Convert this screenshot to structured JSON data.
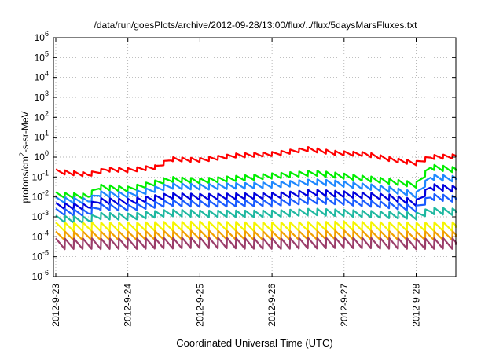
{
  "chart_data": {
    "type": "line",
    "title": "/data/run/goesPlots/archive/2012-09-28/13:00/flux/../flux/5daysMarsFluxes.txt",
    "xlabel": "Coordinated Universal Time (UTC)",
    "ylabel": {
      "base": "protons/cm",
      "sup": "2",
      "rest": "-s-sr-MeV"
    },
    "x_ticks": [
      "2012-9-23",
      "2012-9-24",
      "2012-9-25",
      "2012-9-26",
      "2012-9-27",
      "2012-9-28"
    ],
    "x_range_days": [
      0,
      5.58
    ],
    "y_scale": "log",
    "ylim": [
      1e-06,
      1000000.0
    ],
    "y_ticks": [
      {
        "value": -6,
        "base": "10",
        "exp": "-6"
      },
      {
        "value": -5,
        "base": "10",
        "exp": "-5"
      },
      {
        "value": -4,
        "base": "10",
        "exp": "-4"
      },
      {
        "value": -3,
        "base": "10",
        "exp": "-3"
      },
      {
        "value": -2,
        "base": "10",
        "exp": "-2"
      },
      {
        "value": -1,
        "base": "10",
        "exp": "-1"
      },
      {
        "value": 0,
        "base": "10",
        "exp": "0"
      },
      {
        "value": 1,
        "base": "10",
        "exp": "1"
      },
      {
        "value": 2,
        "base": "10",
        "exp": "2"
      },
      {
        "value": 3,
        "base": "10",
        "exp": "3"
      },
      {
        "value": 4,
        "base": "10",
        "exp": "4"
      },
      {
        "value": 5,
        "base": "10",
        "exp": "5"
      },
      {
        "value": 6,
        "base": "10",
        "exp": "6"
      }
    ],
    "grid": true,
    "legend": "none",
    "series": [
      {
        "color": "#ff0000",
        "anchors": [
          [
            0,
            -0.72
          ],
          [
            0.45,
            -0.88
          ],
          [
            0.7,
            -0.62
          ],
          [
            1.0,
            -0.66
          ],
          [
            1.4,
            -0.5
          ],
          [
            1.6,
            -0.1
          ],
          [
            2.0,
            -0.15
          ],
          [
            2.5,
            0.08
          ],
          [
            3.0,
            0.15
          ],
          [
            3.5,
            0.4
          ],
          [
            3.9,
            0.2
          ],
          [
            4.3,
            0.15
          ],
          [
            4.7,
            -0.15
          ],
          [
            5.0,
            -0.3
          ],
          [
            5.2,
            0.0
          ],
          [
            5.58,
            0.05
          ]
        ],
        "saw_amp": 0.22
      },
      {
        "color": "#00ee00",
        "anchors": [
          [
            0,
            -1.9
          ],
          [
            0.45,
            -1.97
          ],
          [
            0.6,
            -1.5
          ],
          [
            1.0,
            -1.62
          ],
          [
            1.6,
            -1.12
          ],
          [
            2.0,
            -1.2
          ],
          [
            3.0,
            -0.95
          ],
          [
            3.6,
            -0.8
          ],
          [
            3.9,
            -0.92
          ],
          [
            4.6,
            -1.2
          ],
          [
            5.0,
            -1.4
          ],
          [
            5.2,
            -0.5
          ],
          [
            5.58,
            -0.65
          ]
        ],
        "saw_amp": 0.28
      },
      {
        "color": "#1e88ff",
        "anchors": [
          [
            0,
            -2.15
          ],
          [
            0.45,
            -2.2
          ],
          [
            0.6,
            -1.85
          ],
          [
            1.0,
            -1.9
          ],
          [
            1.6,
            -1.45
          ],
          [
            2.0,
            -1.5
          ],
          [
            3.0,
            -1.4
          ],
          [
            3.6,
            -1.25
          ],
          [
            3.9,
            -1.32
          ],
          [
            4.6,
            -1.6
          ],
          [
            5.0,
            -1.9
          ],
          [
            5.2,
            -1.0
          ],
          [
            5.58,
            -1.1
          ]
        ],
        "saw_amp": 0.3
      },
      {
        "color": "#0000dd",
        "anchors": [
          [
            0,
            -2.45
          ],
          [
            0.45,
            -2.5
          ],
          [
            0.6,
            -2.2
          ],
          [
            1.0,
            -2.25
          ],
          [
            1.6,
            -1.95
          ],
          [
            2.0,
            -2.0
          ],
          [
            3.0,
            -1.95
          ],
          [
            3.6,
            -1.78
          ],
          [
            3.9,
            -1.85
          ],
          [
            4.6,
            -2.0
          ],
          [
            5.0,
            -2.3
          ],
          [
            5.2,
            -1.5
          ],
          [
            5.58,
            -1.6
          ]
        ],
        "saw_amp": 0.32
      },
      {
        "color": "#1a5cff",
        "anchors": [
          [
            0,
            -2.75
          ],
          [
            0.45,
            -2.8
          ],
          [
            0.6,
            -2.5
          ],
          [
            1.0,
            -2.55
          ],
          [
            1.6,
            -2.3
          ],
          [
            2.0,
            -2.35
          ],
          [
            3.0,
            -2.3
          ],
          [
            3.6,
            -2.18
          ],
          [
            3.9,
            -2.22
          ],
          [
            4.6,
            -2.4
          ],
          [
            5.0,
            -2.6
          ],
          [
            5.2,
            -2.0
          ],
          [
            5.58,
            -2.1
          ]
        ],
        "saw_amp": 0.33
      },
      {
        "color": "#1fb8a0",
        "anchors": [
          [
            0,
            -3.1
          ],
          [
            0.45,
            -3.15
          ],
          [
            0.6,
            -2.95
          ],
          [
            1.0,
            -3.0
          ],
          [
            1.6,
            -2.8
          ],
          [
            2.0,
            -2.85
          ],
          [
            3.0,
            -2.85
          ],
          [
            3.6,
            -2.75
          ],
          [
            3.9,
            -2.8
          ],
          [
            4.6,
            -2.9
          ],
          [
            5.0,
            -2.95
          ],
          [
            5.2,
            -2.7
          ],
          [
            5.58,
            -2.75
          ]
        ],
        "saw_amp": 0.35
      },
      {
        "color": "#f5f500",
        "anchors": [
          [
            0,
            -3.5
          ],
          [
            1.0,
            -3.5
          ],
          [
            2.0,
            -3.45
          ],
          [
            3.0,
            -3.5
          ],
          [
            4.0,
            -3.45
          ],
          [
            5.0,
            -3.5
          ],
          [
            5.58,
            -3.48
          ]
        ],
        "saw_amp": 0.45
      },
      {
        "color": "#f2a000",
        "anchors": [
          [
            0,
            -3.95
          ],
          [
            1.0,
            -3.95
          ],
          [
            2.0,
            -3.9
          ],
          [
            3.0,
            -3.95
          ],
          [
            4.0,
            -3.9
          ],
          [
            5.0,
            -3.95
          ],
          [
            5.58,
            -3.93
          ]
        ],
        "saw_amp": 0.45
      },
      {
        "color": "#9b3d6a",
        "anchors": [
          [
            0,
            -4.35
          ],
          [
            1.0,
            -4.35
          ],
          [
            2.0,
            -4.3
          ],
          [
            3.0,
            -4.35
          ],
          [
            4.0,
            -4.3
          ],
          [
            5.0,
            -4.35
          ],
          [
            5.58,
            -4.33
          ]
        ],
        "saw_amp": 0.55
      }
    ],
    "saw_period_days": 0.125
  }
}
